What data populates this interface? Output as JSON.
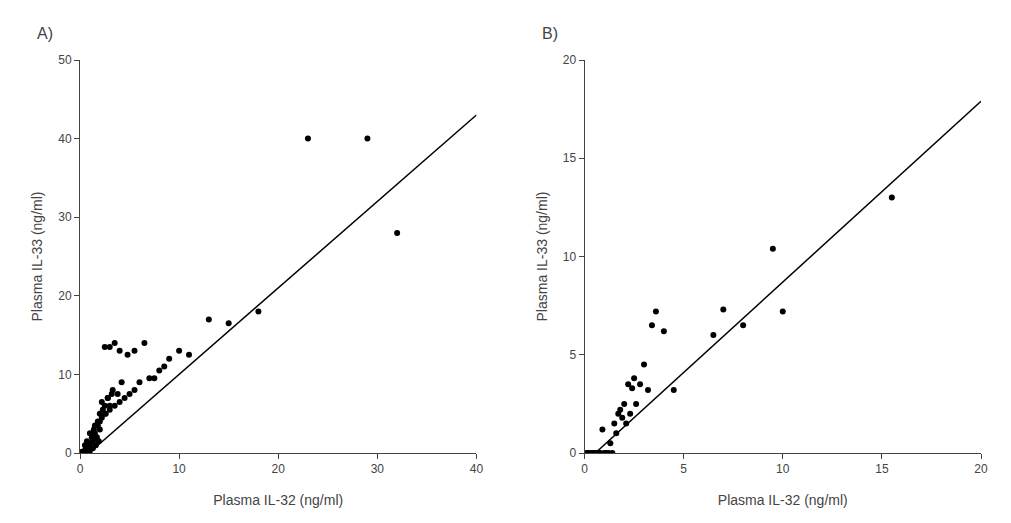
{
  "chart_data": [
    {
      "type": "scatter",
      "title": "A)",
      "xlabel": "Plasma IL-32 (ng/ml)",
      "ylabel": "Plasma IL-33 (ng/ml)",
      "xlim": [
        0,
        40
      ],
      "ylim": [
        0,
        50
      ],
      "xticks": [
        0,
        10,
        20,
        30,
        40
      ],
      "yticks": [
        0,
        10,
        20,
        30,
        40,
        50
      ],
      "grid": false,
      "series": [
        {
          "type": "scatter",
          "marker": "circle",
          "color": "#000000",
          "x": [
            0.1,
            0.2,
            0.3,
            0.4,
            0.5,
            0.6,
            0.7,
            0.8,
            0.9,
            1.0,
            0.5,
            0.6,
            0.7,
            0.8,
            0.9,
            1.0,
            1.1,
            1.2,
            1.3,
            1.4,
            1.0,
            1.2,
            1.3,
            1.4,
            1.5,
            1.6,
            1.7,
            1.8,
            1.9,
            2.0,
            1.5,
            1.8,
            2.0,
            2.2,
            2.3,
            2.5,
            2.6,
            2.8,
            3.0,
            3.2,
            2.0,
            2.5,
            3.0,
            3.5,
            4.0,
            4.5,
            5.0,
            5.5,
            6.0,
            7.0,
            2.2,
            2.8,
            3.3,
            3.8,
            4.2,
            3.0,
            4.0,
            4.8,
            5.5,
            6.5,
            7.5,
            8.0,
            8.5,
            9.0,
            10.0,
            11.0,
            13.0,
            15.0,
            18.0,
            2.5,
            3.5,
            23.0,
            29.0,
            32.0
          ],
          "values": [
            0.1,
            0.0,
            0.2,
            0.1,
            0.3,
            0.2,
            0.1,
            0.3,
            0.0,
            0.5,
            1.0,
            0.8,
            1.5,
            0.5,
            1.2,
            0.3,
            0.8,
            2.0,
            0.6,
            1.8,
            2.5,
            2.0,
            1.5,
            3.0,
            2.5,
            1.0,
            2.0,
            3.5,
            1.5,
            3.0,
            3.5,
            4.0,
            5.0,
            4.5,
            5.5,
            6.0,
            5.0,
            7.0,
            6.0,
            7.5,
            4.0,
            5.0,
            5.5,
            6.0,
            6.5,
            7.0,
            7.5,
            8.0,
            9.0,
            9.5,
            6.5,
            7.0,
            8.0,
            7.5,
            9.0,
            13.5,
            13.0,
            12.5,
            13.0,
            14.0,
            9.5,
            10.5,
            11.0,
            12.0,
            13.0,
            12.5,
            17.0,
            16.5,
            18.0,
            13.5,
            14.0,
            40.0,
            40.0,
            28.0
          ]
        },
        {
          "type": "line",
          "line_style": "solid",
          "color": "#000000",
          "x": [
            0.9090909090909091,
            40
          ],
          "values": [
            0,
            43
          ]
        }
      ]
    },
    {
      "type": "scatter",
      "title": "B)",
      "xlabel": "Plasma IL-32 (ng/ml)",
      "ylabel": "Plasma IL-33 (ng/ml)",
      "xlim": [
        0,
        20
      ],
      "ylim": [
        0,
        20
      ],
      "xticks": [
        0,
        5,
        10,
        15,
        20
      ],
      "yticks": [
        0,
        5,
        10,
        15,
        20
      ],
      "grid": false,
      "series": [
        {
          "type": "scatter",
          "marker": "circle",
          "color": "#000000",
          "x": [
            0.1,
            0.2,
            0.3,
            0.4,
            0.5,
            0.5,
            0.6,
            0.7,
            0.8,
            0.9,
            1.0,
            1.1,
            1.2,
            1.3,
            1.4,
            1.5,
            1.6,
            1.7,
            1.8,
            1.9,
            2.0,
            2.1,
            2.2,
            2.3,
            2.4,
            2.5,
            2.6,
            2.8,
            3.0,
            3.2,
            3.4,
            3.6,
            4.0,
            4.5,
            6.5,
            7.0,
            8.0,
            9.5,
            10.0,
            15.5
          ],
          "values": [
            0.0,
            0.0,
            0.0,
            0.0,
            0.0,
            0.0,
            0.0,
            0.0,
            0.0,
            1.2,
            0.0,
            0.0,
            0.0,
            0.5,
            0.0,
            1.5,
            1.0,
            2.0,
            2.2,
            1.8,
            2.5,
            1.5,
            3.5,
            2.0,
            3.3,
            3.8,
            2.5,
            3.5,
            4.5,
            3.2,
            6.5,
            7.2,
            6.2,
            3.2,
            6.0,
            7.3,
            6.5,
            10.4,
            7.2,
            13.0
          ]
        },
        {
          "type": "line",
          "line_style": "solid",
          "color": "#000000",
          "x": [
            0.5434782608695652,
            20
          ],
          "values": [
            0,
            17.9
          ]
        }
      ]
    }
  ]
}
